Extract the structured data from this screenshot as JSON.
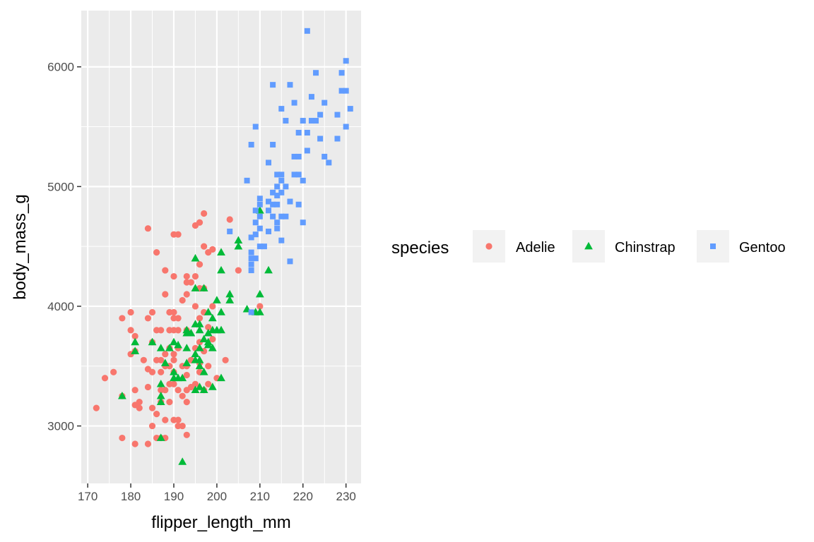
{
  "chart_data": {
    "type": "scatter",
    "xlabel": "flipper_length_mm",
    "ylabel": "body_mass_g",
    "xlim": [
      168.5,
      233.5
    ],
    "ylim": [
      2520,
      6470
    ],
    "x_ticks": [
      170,
      180,
      190,
      200,
      210,
      220,
      230
    ],
    "y_ticks": [
      3000,
      4000,
      5000,
      6000
    ],
    "grid": true,
    "legend": {
      "title": "species",
      "position": "right",
      "entries": [
        "Adelie",
        "Chinstrap",
        "Gentoo"
      ]
    },
    "series": [
      {
        "name": "Adelie",
        "color": "#f8766d",
        "shape": "circle",
        "points": [
          [
            172,
            3150
          ],
          [
            174,
            3400
          ],
          [
            176,
            3450
          ],
          [
            178,
            2900
          ],
          [
            178,
            3250
          ],
          [
            178,
            3900
          ],
          [
            180,
            3600
          ],
          [
            180,
            3800
          ],
          [
            180,
            3950
          ],
          [
            181,
            2850
          ],
          [
            181,
            3175
          ],
          [
            181,
            3300
          ],
          [
            181,
            3625
          ],
          [
            181,
            3750
          ],
          [
            182,
            3150
          ],
          [
            182,
            3200
          ],
          [
            183,
            3550
          ],
          [
            184,
            2850
          ],
          [
            184,
            3325
          ],
          [
            184,
            3475
          ],
          [
            184,
            3900
          ],
          [
            184,
            4650
          ],
          [
            185,
            3000
          ],
          [
            185,
            3150
          ],
          [
            185,
            3450
          ],
          [
            185,
            3700
          ],
          [
            185,
            3950
          ],
          [
            186,
            2900
          ],
          [
            186,
            3100
          ],
          [
            186,
            3550
          ],
          [
            186,
            3800
          ],
          [
            186,
            4450
          ],
          [
            187,
            2900
          ],
          [
            187,
            3200
          ],
          [
            187,
            3300
          ],
          [
            187,
            3450
          ],
          [
            187,
            3550
          ],
          [
            187,
            3800
          ],
          [
            188,
            2900
          ],
          [
            188,
            3050
          ],
          [
            188,
            3300
          ],
          [
            188,
            3500
          ],
          [
            188,
            3600
          ],
          [
            188,
            4100
          ],
          [
            188,
            4300
          ],
          [
            189,
            3200
          ],
          [
            189,
            3350
          ],
          [
            189,
            3500
          ],
          [
            189,
            3650
          ],
          [
            189,
            3800
          ],
          [
            189,
            3950
          ],
          [
            190,
            3050
          ],
          [
            190,
            3350
          ],
          [
            190,
            3450
          ],
          [
            190,
            3550
          ],
          [
            190,
            3600
          ],
          [
            190,
            3800
          ],
          [
            190,
            3900
          ],
          [
            190,
            3950
          ],
          [
            190,
            4250
          ],
          [
            190,
            4600
          ],
          [
            191,
            3000
          ],
          [
            191,
            3050
          ],
          [
            191,
            3300
          ],
          [
            191,
            3650
          ],
          [
            191,
            3800
          ],
          [
            191,
            3900
          ],
          [
            191,
            4600
          ],
          [
            192,
            3000
          ],
          [
            192,
            3250
          ],
          [
            192,
            3500
          ],
          [
            192,
            4050
          ],
          [
            193,
            2925
          ],
          [
            193,
            3200
          ],
          [
            193,
            3300
          ],
          [
            193,
            3425
          ],
          [
            193,
            3500
          ],
          [
            193,
            3800
          ],
          [
            193,
            4100
          ],
          [
            193,
            4200
          ],
          [
            193,
            4250
          ],
          [
            194,
            3325
          ],
          [
            194,
            3550
          ],
          [
            194,
            4200
          ],
          [
            195,
            3350
          ],
          [
            195,
            3650
          ],
          [
            195,
            4000
          ],
          [
            195,
            4250
          ],
          [
            195,
            4675
          ],
          [
            196,
            3450
          ],
          [
            196,
            3525
          ],
          [
            196,
            3700
          ],
          [
            196,
            3900
          ],
          [
            196,
            4150
          ],
          [
            196,
            4350
          ],
          [
            196,
            4700
          ],
          [
            197,
            3300
          ],
          [
            197,
            3625
          ],
          [
            197,
            3950
          ],
          [
            197,
            4150
          ],
          [
            197,
            4500
          ],
          [
            197,
            4775
          ],
          [
            198,
            3350
          ],
          [
            198,
            3500
          ],
          [
            198,
            3825
          ],
          [
            198,
            4450
          ],
          [
            199,
            3725
          ],
          [
            199,
            4000
          ],
          [
            199,
            4475
          ],
          [
            200,
            3400
          ],
          [
            202,
            3550
          ],
          [
            203,
            4725
          ],
          [
            205,
            4300
          ],
          [
            210,
            4000
          ]
        ]
      },
      {
        "name": "Chinstrap",
        "color": "#00ba38",
        "shape": "triangle",
        "points": [
          [
            178,
            3250
          ],
          [
            181,
            3625
          ],
          [
            181,
            3700
          ],
          [
            185,
            3700
          ],
          [
            187,
            2900
          ],
          [
            187,
            3200
          ],
          [
            187,
            3250
          ],
          [
            187,
            3350
          ],
          [
            187,
            3650
          ],
          [
            188,
            3525
          ],
          [
            189,
            3650
          ],
          [
            190,
            3400
          ],
          [
            190,
            3450
          ],
          [
            190,
            3700
          ],
          [
            191,
            3400
          ],
          [
            191,
            3675
          ],
          [
            192,
            2700
          ],
          [
            192,
            3400
          ],
          [
            193,
            3525
          ],
          [
            193,
            3650
          ],
          [
            193,
            3775
          ],
          [
            193,
            3800
          ],
          [
            194,
            3775
          ],
          [
            195,
            3300
          ],
          [
            195,
            3550
          ],
          [
            195,
            3600
          ],
          [
            195,
            3850
          ],
          [
            195,
            4150
          ],
          [
            195,
            4400
          ],
          [
            196,
            3325
          ],
          [
            196,
            3500
          ],
          [
            196,
            3550
          ],
          [
            196,
            3650
          ],
          [
            196,
            3800
          ],
          [
            196,
            3850
          ],
          [
            197,
            3300
          ],
          [
            197,
            3450
          ],
          [
            197,
            3725
          ],
          [
            197,
            4150
          ],
          [
            198,
            3675
          ],
          [
            198,
            3700
          ],
          [
            198,
            3775
          ],
          [
            198,
            3950
          ],
          [
            199,
            3325
          ],
          [
            199,
            3650
          ],
          [
            199,
            3800
          ],
          [
            199,
            3900
          ],
          [
            200,
            3800
          ],
          [
            200,
            4050
          ],
          [
            201,
            3400
          ],
          [
            201,
            3800
          ],
          [
            201,
            3950
          ],
          [
            201,
            4300
          ],
          [
            201,
            4450
          ],
          [
            203,
            4050
          ],
          [
            203,
            4100
          ],
          [
            205,
            4500
          ],
          [
            205,
            4550
          ],
          [
            207,
            3975
          ],
          [
            209,
            3950
          ],
          [
            210,
            3950
          ],
          [
            210,
            4100
          ],
          [
            210,
            4800
          ],
          [
            212,
            4300
          ]
        ]
      },
      {
        "name": "Gentoo",
        "color": "#619cff",
        "shape": "square",
        "points": [
          [
            203,
            4625
          ],
          [
            207,
            5050
          ],
          [
            208,
            3950
          ],
          [
            208,
            4300
          ],
          [
            208,
            4350
          ],
          [
            208,
            4400
          ],
          [
            208,
            4450
          ],
          [
            208,
            4575
          ],
          [
            208,
            5350
          ],
          [
            209,
            4400
          ],
          [
            209,
            4600
          ],
          [
            209,
            4700
          ],
          [
            209,
            4800
          ],
          [
            209,
            5500
          ],
          [
            210,
            4500
          ],
          [
            210,
            4650
          ],
          [
            210,
            4750
          ],
          [
            210,
            4850
          ],
          [
            210,
            4900
          ],
          [
            211,
            4500
          ],
          [
            212,
            4625
          ],
          [
            212,
            4800
          ],
          [
            212,
            4875
          ],
          [
            212,
            5200
          ],
          [
            213,
            4750
          ],
          [
            213,
            4850
          ],
          [
            213,
            4950
          ],
          [
            213,
            5350
          ],
          [
            213,
            5850
          ],
          [
            214,
            4650
          ],
          [
            214,
            4700
          ],
          [
            214,
            4850
          ],
          [
            214,
            4925
          ],
          [
            214,
            5000
          ],
          [
            214,
            5100
          ],
          [
            215,
            4550
          ],
          [
            215,
            4750
          ],
          [
            215,
            4950
          ],
          [
            215,
            5050
          ],
          [
            215,
            5100
          ],
          [
            215,
            5650
          ],
          [
            216,
            4750
          ],
          [
            216,
            5000
          ],
          [
            216,
            5550
          ],
          [
            217,
            4375
          ],
          [
            217,
            4875
          ],
          [
            217,
            5850
          ],
          [
            218,
            5100
          ],
          [
            218,
            5250
          ],
          [
            218,
            5700
          ],
          [
            219,
            4850
          ],
          [
            219,
            5100
          ],
          [
            219,
            5250
          ],
          [
            219,
            5450
          ],
          [
            220,
            4700
          ],
          [
            220,
            5050
          ],
          [
            220,
            5550
          ],
          [
            221,
            5300
          ],
          [
            221,
            5450
          ],
          [
            221,
            6300
          ],
          [
            222,
            5550
          ],
          [
            222,
            5750
          ],
          [
            223,
            5550
          ],
          [
            223,
            5950
          ],
          [
            224,
            5400
          ],
          [
            224,
            5600
          ],
          [
            225,
            5250
          ],
          [
            225,
            5700
          ],
          [
            226,
            5200
          ],
          [
            228,
            5400
          ],
          [
            228,
            5600
          ],
          [
            229,
            5800
          ],
          [
            229,
            5950
          ],
          [
            230,
            5500
          ],
          [
            230,
            5800
          ],
          [
            230,
            6050
          ],
          [
            231,
            5650
          ]
        ]
      }
    ]
  }
}
